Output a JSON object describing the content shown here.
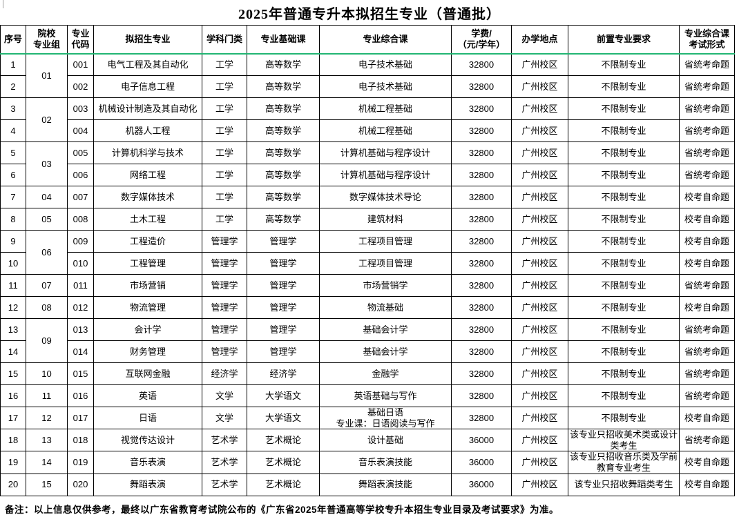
{
  "title": "2025年普通专升本拟招生专业（普通批）",
  "note": "备注：以上信息仅供参考，最终以广东省教育考试院公布的《广东省2025年普通高等学校专升本招生专业目录及考试要求》为准。",
  "colors": {
    "accent_line": "#21b573",
    "border": "#000000",
    "background": "#ffffff",
    "text": "#000000"
  },
  "table": {
    "headers": [
      "序号",
      "院校\n专业组",
      "专业\n代码",
      "拟招生专业",
      "学科门类",
      "专业基础课",
      "专业综合课",
      "学费/\n（元/学年）",
      "办学地点",
      "前置专业要求",
      "专业综合课\n考试形式"
    ],
    "rows": [
      {
        "seq": "1",
        "group": "01",
        "group_span": 2,
        "code": "001",
        "major": "电气工程及其自动化",
        "category": "工学",
        "basic_course": "高等数学",
        "comprehensive_course": "电子技术基础",
        "fee": "32800",
        "location": "广州校区",
        "prerequisite": "不限制专业",
        "exam_mode": "省统考命题"
      },
      {
        "seq": "2",
        "code": "002",
        "major": "电子信息工程",
        "category": "工学",
        "basic_course": "高等数学",
        "comprehensive_course": "电子技术基础",
        "fee": "32800",
        "location": "广州校区",
        "prerequisite": "不限制专业",
        "exam_mode": "省统考命题"
      },
      {
        "seq": "3",
        "group": "02",
        "group_span": 2,
        "code": "003",
        "major": "机械设计制造及其自动化",
        "category": "工学",
        "basic_course": "高等数学",
        "comprehensive_course": "机械工程基础",
        "fee": "32800",
        "location": "广州校区",
        "prerequisite": "不限制专业",
        "exam_mode": "省统考命题"
      },
      {
        "seq": "4",
        "code": "004",
        "major": "机器人工程",
        "category": "工学",
        "basic_course": "高等数学",
        "comprehensive_course": "机械工程基础",
        "fee": "32800",
        "location": "广州校区",
        "prerequisite": "不限制专业",
        "exam_mode": "省统考命题"
      },
      {
        "seq": "5",
        "group": "03",
        "group_span": 2,
        "code": "005",
        "major": "计算机科学与技术",
        "category": "工学",
        "basic_course": "高等数学",
        "comprehensive_course": "计算机基础与程序设计",
        "fee": "32800",
        "location": "广州校区",
        "prerequisite": "不限制专业",
        "exam_mode": "省统考命题"
      },
      {
        "seq": "6",
        "code": "006",
        "major": "网络工程",
        "category": "工学",
        "basic_course": "高等数学",
        "comprehensive_course": "计算机基础与程序设计",
        "fee": "32800",
        "location": "广州校区",
        "prerequisite": "不限制专业",
        "exam_mode": "省统考命题"
      },
      {
        "seq": "7",
        "group": "04",
        "code": "007",
        "major": "数字媒体技术",
        "category": "工学",
        "basic_course": "高等数学",
        "comprehensive_course": "数字媒体技术导论",
        "fee": "32800",
        "location": "广州校区",
        "prerequisite": "不限制专业",
        "exam_mode": "校考自命题"
      },
      {
        "seq": "8",
        "group": "05",
        "code": "008",
        "major": "土木工程",
        "category": "工学",
        "basic_course": "高等数学",
        "comprehensive_course": "建筑材料",
        "fee": "32800",
        "location": "广州校区",
        "prerequisite": "不限制专业",
        "exam_mode": "校考自命题"
      },
      {
        "seq": "9",
        "group": "06",
        "group_span": 2,
        "code": "009",
        "major": "工程造价",
        "category": "管理学",
        "basic_course": "管理学",
        "comprehensive_course": "工程项目管理",
        "fee": "32800",
        "location": "广州校区",
        "prerequisite": "不限制专业",
        "exam_mode": "校考自命题"
      },
      {
        "seq": "10",
        "code": "010",
        "major": "工程管理",
        "category": "管理学",
        "basic_course": "管理学",
        "comprehensive_course": "工程项目管理",
        "fee": "32800",
        "location": "广州校区",
        "prerequisite": "不限制专业",
        "exam_mode": "校考自命题"
      },
      {
        "seq": "11",
        "group": "07",
        "code": "011",
        "major": "市场营销",
        "category": "管理学",
        "basic_course": "管理学",
        "comprehensive_course": "市场营销学",
        "fee": "32800",
        "location": "广州校区",
        "prerequisite": "不限制专业",
        "exam_mode": "省统考命题"
      },
      {
        "seq": "12",
        "group": "08",
        "code": "012",
        "major": "物流管理",
        "category": "管理学",
        "basic_course": "管理学",
        "comprehensive_course": "物流基础",
        "fee": "32800",
        "location": "广州校区",
        "prerequisite": "不限制专业",
        "exam_mode": "校考自命题"
      },
      {
        "seq": "13",
        "group": "09",
        "group_span": 2,
        "code": "013",
        "major": "会计学",
        "category": "管理学",
        "basic_course": "管理学",
        "comprehensive_course": "基础会计学",
        "fee": "32800",
        "location": "广州校区",
        "prerequisite": "不限制专业",
        "exam_mode": "省统考命题"
      },
      {
        "seq": "14",
        "code": "014",
        "major": "财务管理",
        "category": "管理学",
        "basic_course": "管理学",
        "comprehensive_course": "基础会计学",
        "fee": "32800",
        "location": "广州校区",
        "prerequisite": "不限制专业",
        "exam_mode": "省统考命题"
      },
      {
        "seq": "15",
        "group": "10",
        "code": "015",
        "major": "互联网金融",
        "category": "经济学",
        "basic_course": "经济学",
        "comprehensive_course": "金融学",
        "fee": "32800",
        "location": "广州校区",
        "prerequisite": "不限制专业",
        "exam_mode": "省统考命题"
      },
      {
        "seq": "16",
        "group": "11",
        "code": "016",
        "major": "英语",
        "category": "文学",
        "basic_course": "大学语文",
        "comprehensive_course": "英语基础与写作",
        "fee": "32800",
        "location": "广州校区",
        "prerequisite": "不限制专业",
        "exam_mode": "省统考命题"
      },
      {
        "seq": "17",
        "group": "12",
        "code": "017",
        "major": "日语",
        "category": "文学",
        "basic_course": "大学语文",
        "comprehensive_course": "基础日语\n专业课：日语阅读与写作",
        "fee": "32800",
        "location": "广州校区",
        "prerequisite": "不限制专业",
        "exam_mode": "校考自命题"
      },
      {
        "seq": "18",
        "group": "13",
        "code": "018",
        "major": "视觉传达设计",
        "category": "艺术学",
        "basic_course": "艺术概论",
        "comprehensive_course": "设计基础",
        "fee": "36000",
        "location": "广州校区",
        "prerequisite": "该专业只招收美术类或设计类考生",
        "exam_mode": "省统考命题"
      },
      {
        "seq": "19",
        "group": "14",
        "code": "019",
        "major": "音乐表演",
        "category": "艺术学",
        "basic_course": "艺术概论",
        "comprehensive_course": "音乐表演技能",
        "fee": "36000",
        "location": "广州校区",
        "prerequisite": "该专业只招收音乐类及学前教育专业考生",
        "exam_mode": "校考自命题"
      },
      {
        "seq": "20",
        "group": "15",
        "code": "020",
        "major": "舞蹈表演",
        "category": "艺术学",
        "basic_course": "艺术概论",
        "comprehensive_course": "舞蹈表演技能",
        "fee": "36000",
        "location": "广州校区",
        "prerequisite": "该专业只招收舞蹈类考生",
        "exam_mode": "校考自命题"
      }
    ]
  }
}
